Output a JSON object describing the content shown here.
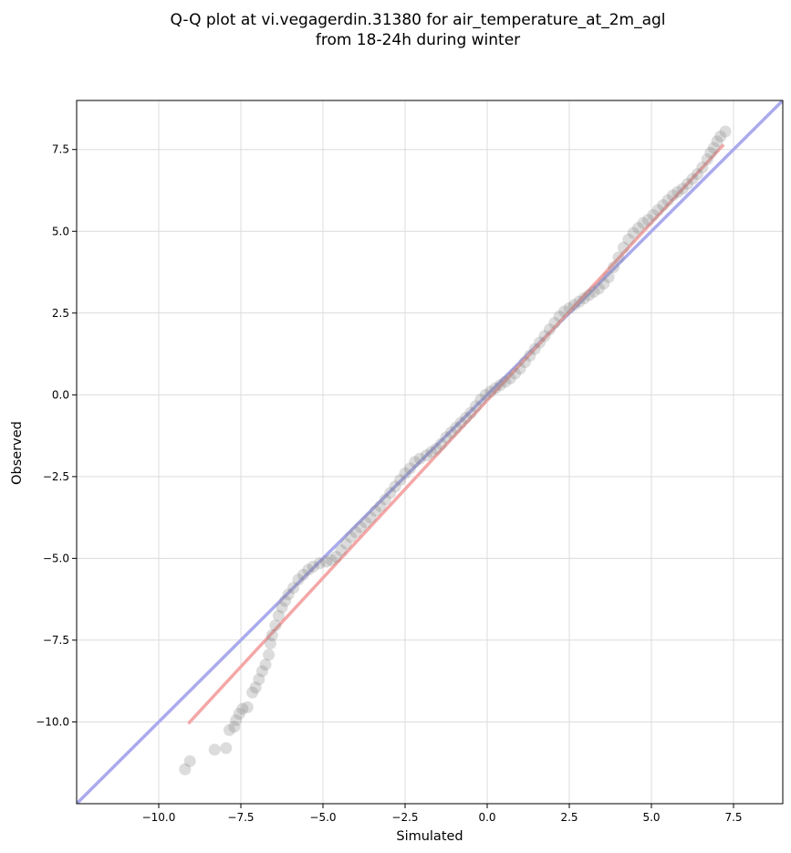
{
  "chart_data": {
    "type": "scatter",
    "title": "Q-Q plot at vi.vegagerdin.31380 for air_temperature_at_2m_agl",
    "subtitle": "from 18-24h during winter",
    "xlabel": "Simulated",
    "ylabel": "Observed",
    "xlim": [
      -12.5,
      9.0
    ],
    "ylim": [
      -12.5,
      9.0
    ],
    "xticks": [
      -10.0,
      -7.5,
      -5.0,
      -2.5,
      0.0,
      2.5,
      5.0,
      7.5
    ],
    "xtick_labels": [
      "−10.0",
      "−7.5",
      "−5.0",
      "−2.5",
      "0.0",
      "2.5",
      "5.0",
      "7.5"
    ],
    "yticks": [
      -10.0,
      -7.5,
      -5.0,
      -2.5,
      0.0,
      2.5,
      5.0,
      7.5
    ],
    "ytick_labels": [
      "−10.0",
      "−7.5",
      "−5.0",
      "−2.5",
      "0.0",
      "2.5",
      "5.0",
      "7.5"
    ],
    "grid": true,
    "colors": {
      "points": "#808080",
      "identity": "#aaaaee",
      "fit": "#f4a7a7"
    },
    "identity_line": {
      "x": [
        -12.5,
        9.0
      ],
      "y": [
        -12.5,
        9.0
      ]
    },
    "fit_line": {
      "x": [
        -9.1,
        7.2
      ],
      "y": [
        -10.05,
        7.65
      ]
    },
    "series": [
      {
        "points": [
          [
            -9.2,
            -11.45
          ],
          [
            -9.05,
            -11.2
          ],
          [
            -8.3,
            -10.85
          ],
          [
            -7.95,
            -10.8
          ],
          [
            -7.85,
            -10.25
          ],
          [
            -7.7,
            -10.15
          ],
          [
            -7.65,
            -9.95
          ],
          [
            -7.55,
            -9.75
          ],
          [
            -7.45,
            -9.6
          ],
          [
            -7.3,
            -9.55
          ],
          [
            -7.15,
            -9.1
          ],
          [
            -7.05,
            -8.95
          ],
          [
            -6.95,
            -8.7
          ],
          [
            -6.85,
            -8.45
          ],
          [
            -6.75,
            -8.25
          ],
          [
            -6.65,
            -7.95
          ],
          [
            -6.6,
            -7.6
          ],
          [
            -6.55,
            -7.35
          ],
          [
            -6.45,
            -7.05
          ],
          [
            -6.35,
            -6.75
          ],
          [
            -6.25,
            -6.5
          ],
          [
            -6.15,
            -6.3
          ],
          [
            -6.05,
            -6.1
          ],
          [
            -5.9,
            -5.9
          ],
          [
            -5.75,
            -5.65
          ],
          [
            -5.6,
            -5.5
          ],
          [
            -5.45,
            -5.35
          ],
          [
            -5.3,
            -5.25
          ],
          [
            -5.1,
            -5.15
          ],
          [
            -4.9,
            -5.1
          ],
          [
            -4.75,
            -5.05
          ],
          [
            -4.6,
            -4.95
          ],
          [
            -4.45,
            -4.75
          ],
          [
            -4.3,
            -4.55
          ],
          [
            -4.15,
            -4.35
          ],
          [
            -4.0,
            -4.2
          ],
          [
            -3.85,
            -4.05
          ],
          [
            -3.7,
            -3.9
          ],
          [
            -3.55,
            -3.75
          ],
          [
            -3.4,
            -3.55
          ],
          [
            -3.25,
            -3.4
          ],
          [
            -3.1,
            -3.2
          ],
          [
            -2.95,
            -3.0
          ],
          [
            -2.8,
            -2.8
          ],
          [
            -2.65,
            -2.6
          ],
          [
            -2.5,
            -2.4
          ],
          [
            -2.35,
            -2.25
          ],
          [
            -2.2,
            -2.05
          ],
          [
            -2.05,
            -1.95
          ],
          [
            -1.85,
            -1.85
          ],
          [
            -1.7,
            -1.75
          ],
          [
            -1.55,
            -1.65
          ],
          [
            -1.4,
            -1.5
          ],
          [
            -1.25,
            -1.3
          ],
          [
            -1.1,
            -1.15
          ],
          [
            -0.95,
            -1.0
          ],
          [
            -0.8,
            -0.85
          ],
          [
            -0.65,
            -0.7
          ],
          [
            -0.5,
            -0.55
          ],
          [
            -0.35,
            -0.35
          ],
          [
            -0.2,
            -0.15
          ],
          [
            -0.05,
            0.0
          ],
          [
            0.1,
            0.1
          ],
          [
            0.25,
            0.2
          ],
          [
            0.4,
            0.3
          ],
          [
            0.55,
            0.4
          ],
          [
            0.7,
            0.5
          ],
          [
            0.85,
            0.65
          ],
          [
            1.0,
            0.8
          ],
          [
            1.15,
            1.0
          ],
          [
            1.3,
            1.2
          ],
          [
            1.45,
            1.4
          ],
          [
            1.6,
            1.6
          ],
          [
            1.75,
            1.8
          ],
          [
            1.9,
            2.0
          ],
          [
            2.05,
            2.2
          ],
          [
            2.2,
            2.4
          ],
          [
            2.35,
            2.55
          ],
          [
            2.5,
            2.65
          ],
          [
            2.65,
            2.75
          ],
          [
            2.8,
            2.85
          ],
          [
            2.95,
            2.95
          ],
          [
            3.1,
            3.05
          ],
          [
            3.25,
            3.15
          ],
          [
            3.4,
            3.25
          ],
          [
            3.55,
            3.4
          ],
          [
            3.7,
            3.6
          ],
          [
            3.85,
            3.9
          ],
          [
            4.0,
            4.2
          ],
          [
            4.15,
            4.5
          ],
          [
            4.3,
            4.75
          ],
          [
            4.45,
            4.95
          ],
          [
            4.6,
            5.1
          ],
          [
            4.75,
            5.25
          ],
          [
            4.9,
            5.35
          ],
          [
            5.05,
            5.5
          ],
          [
            5.2,
            5.65
          ],
          [
            5.35,
            5.8
          ],
          [
            5.5,
            5.95
          ],
          [
            5.65,
            6.1
          ],
          [
            5.8,
            6.2
          ],
          [
            5.95,
            6.3
          ],
          [
            6.1,
            6.45
          ],
          [
            6.25,
            6.6
          ],
          [
            6.4,
            6.75
          ],
          [
            6.55,
            6.95
          ],
          [
            6.7,
            7.2
          ],
          [
            6.8,
            7.4
          ],
          [
            6.9,
            7.55
          ],
          [
            7.0,
            7.75
          ],
          [
            7.1,
            7.9
          ],
          [
            7.25,
            8.05
          ]
        ]
      }
    ]
  }
}
